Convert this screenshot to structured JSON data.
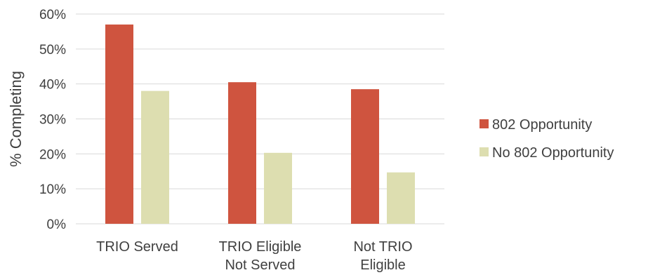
{
  "chart_data": {
    "type": "bar",
    "title": "",
    "xlabel": "",
    "ylabel": "% Completing",
    "ylim": [
      0,
      60
    ],
    "y_unit": "%",
    "y_ticks": [
      "0%",
      "10%",
      "20%",
      "30%",
      "40%",
      "50%",
      "60%"
    ],
    "categories": [
      [
        "TRIO Served"
      ],
      [
        "TRIO Eligible",
        "Not Served"
      ],
      [
        "Not TRIO",
        "Eligible"
      ]
    ],
    "series": [
      {
        "name": "802 Opportunity",
        "color": "#CF543F",
        "values": [
          57,
          40.5,
          38.5
        ]
      },
      {
        "name": "No 802 Opportunity",
        "color": "#DDDEB0",
        "values": [
          38,
          20.3,
          14.7
        ]
      }
    ],
    "grid": true,
    "legend_position": "right"
  }
}
